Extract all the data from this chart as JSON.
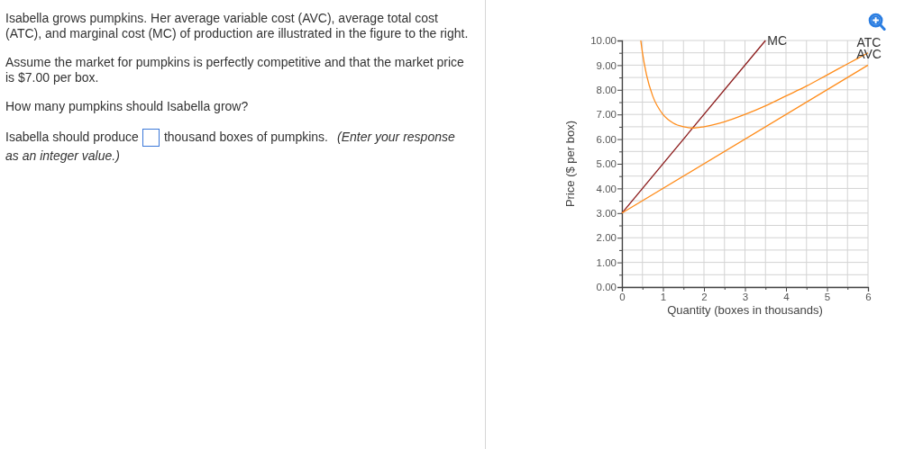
{
  "chart_data": {
    "type": "line",
    "xlabel": "Quantity (boxes in thousands)",
    "ylabel": "Price ($ per box)",
    "xlim": [
      0,
      6
    ],
    "xticks": [
      0,
      {
        "value": 0.5,
        "label": null
      },
      1,
      {
        "value": 1.5,
        "label": null
      },
      2,
      {
        "value": 2.5,
        "label": null
      },
      3,
      {
        "value": 3.5,
        "label": null
      },
      4,
      {
        "value": 4.5,
        "label": null
      },
      5,
      {
        "value": 5.5,
        "label": null
      },
      6
    ],
    "ylim": [
      0,
      10
    ],
    "yticks": [
      {
        "value": 0,
        "label": "0.00"
      },
      {
        "value": 0.5,
        "label": null
      },
      {
        "value": 1,
        "label": "1.00"
      },
      {
        "value": 1.5,
        "label": null
      },
      {
        "value": 2,
        "label": "2.00"
      },
      {
        "value": 2.5,
        "label": null
      },
      {
        "value": 3,
        "label": "3.00"
      },
      {
        "value": 3.5,
        "label": null
      },
      {
        "value": 4,
        "label": "4.00"
      },
      {
        "value": 4.5,
        "label": null
      },
      {
        "value": 5,
        "label": "5.00"
      },
      {
        "value": 5.5,
        "label": null
      },
      {
        "value": 6,
        "label": "6.00"
      },
      {
        "value": 6.5,
        "label": null
      },
      {
        "value": 7,
        "label": "7.00"
      },
      {
        "value": 7.5,
        "label": null
      },
      {
        "value": 8,
        "label": "8.00"
      },
      {
        "value": 8.5,
        "label": null
      },
      {
        "value": 9,
        "label": "9.00"
      },
      {
        "value": 9.5,
        "label": null
      },
      {
        "value": 10,
        "label": "10.00"
      }
    ],
    "grid": true,
    "series": [
      {
        "name": "MC",
        "color": "#8b1a1a",
        "x": [
          0,
          3.5
        ],
        "values": [
          3,
          10
        ]
      },
      {
        "name": "ATC",
        "color": "#ff8c1a",
        "x": [
          0.46,
          0.5,
          0.6,
          0.75,
          1,
          1.25,
          1.5,
          1.75,
          2,
          2.5,
          3,
          3.5,
          4,
          4.5,
          5,
          5.5,
          6
        ],
        "values": [
          10,
          9.5,
          8.6,
          7.75,
          7,
          6.65,
          6.5,
          6.45,
          6.5,
          6.7,
          7,
          7.35,
          7.75,
          8.15,
          8.6,
          9.05,
          9.5
        ]
      },
      {
        "name": "AVC",
        "color": "#ff8c1a",
        "x": [
          0,
          6
        ],
        "values": [
          3,
          9
        ]
      }
    ],
    "annotations": [
      "Isabella grows pumpkins.  Her average variable cost (AVC), average total cost (ATC), and marginal cost (MC) of production are illustrated in the figure to the right.",
      "Assume the market for pumpkins is perfectly competitive and that the market price is $7.00 per box.",
      "How many pumpkins should Isabella grow?",
      "Isabella should produce",
      "thousand boxes of pumpkins.",
      "(Enter your response",
      "as an integer value.)"
    ]
  }
}
